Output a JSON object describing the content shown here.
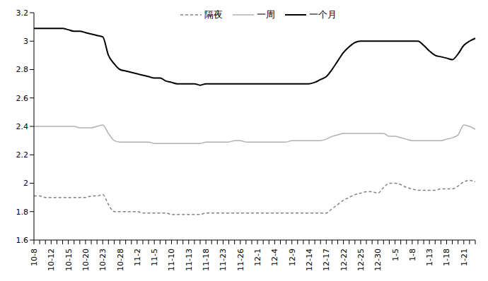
{
  "chart_data": {
    "type": "line",
    "categories": [
      "10-8",
      null,
      null,
      "10-12",
      null,
      null,
      "10-15",
      null,
      null,
      "10-20",
      null,
      null,
      "10-23",
      null,
      null,
      "10-28",
      null,
      null,
      "11-2",
      null,
      null,
      "11-5",
      null,
      null,
      "11-10",
      null,
      null,
      "11-13",
      null,
      null,
      "11-18",
      null,
      null,
      "11-23",
      null,
      null,
      "11-26",
      null,
      null,
      "12-1",
      null,
      null,
      "12-4",
      null,
      null,
      "12-9",
      null,
      null,
      "12-14",
      null,
      null,
      "12-17",
      null,
      null,
      "12-22",
      null,
      null,
      "12-25",
      null,
      null,
      "12-30",
      null,
      null,
      "1-5",
      null,
      null,
      "1-8",
      null,
      null,
      "1-13",
      null,
      null,
      "1-18",
      null,
      null,
      "1-21",
      null,
      null
    ],
    "series": [
      {
        "name": "隔夜",
        "color": "#808080",
        "line_style": "dashed",
        "values": [
          1.91,
          1.91,
          1.9,
          1.9,
          1.9,
          1.9,
          1.9,
          1.9,
          1.9,
          1.9,
          1.91,
          1.91,
          1.92,
          1.85,
          1.8,
          1.8,
          1.8,
          1.8,
          1.8,
          1.79,
          1.79,
          1.79,
          1.79,
          1.79,
          1.78,
          1.78,
          1.78,
          1.78,
          1.78,
          1.78,
          1.79,
          1.79,
          1.79,
          1.79,
          1.79,
          1.79,
          1.79,
          1.79,
          1.79,
          1.79,
          1.79,
          1.79,
          1.79,
          1.79,
          1.79,
          1.79,
          1.79,
          1.79,
          1.79,
          1.79,
          1.79,
          1.79,
          1.82,
          1.85,
          1.88,
          1.9,
          1.92,
          1.93,
          1.94,
          1.94,
          1.93,
          1.97,
          2.0,
          2.0,
          1.99,
          1.97,
          1.96,
          1.95,
          1.95,
          1.95,
          1.95,
          1.96,
          1.96,
          1.96,
          1.98,
          2.01,
          2.02,
          2.01
        ]
      },
      {
        "name": "一周",
        "color": "#b0b0b0",
        "line_style": "solid",
        "values": [
          2.4,
          2.4,
          2.4,
          2.4,
          2.4,
          2.4,
          2.4,
          2.4,
          2.39,
          2.39,
          2.39,
          2.4,
          2.41,
          2.35,
          2.3,
          2.29,
          2.29,
          2.29,
          2.29,
          2.29,
          2.29,
          2.28,
          2.28,
          2.28,
          2.28,
          2.28,
          2.28,
          2.28,
          2.28,
          2.28,
          2.29,
          2.29,
          2.29,
          2.29,
          2.29,
          2.3,
          2.3,
          2.29,
          2.29,
          2.29,
          2.29,
          2.29,
          2.29,
          2.29,
          2.29,
          2.3,
          2.3,
          2.3,
          2.3,
          2.3,
          2.3,
          2.31,
          2.33,
          2.34,
          2.35,
          2.35,
          2.35,
          2.35,
          2.35,
          2.35,
          2.35,
          2.35,
          2.33,
          2.33,
          2.32,
          2.31,
          2.3,
          2.3,
          2.3,
          2.3,
          2.3,
          2.3,
          2.31,
          2.32,
          2.34,
          2.41,
          2.4,
          2.38
        ]
      },
      {
        "name": "一个月",
        "color": "#000000",
        "line_style": "solid",
        "values": [
          3.09,
          3.09,
          3.09,
          3.09,
          3.09,
          3.09,
          3.08,
          3.07,
          3.07,
          3.06,
          3.05,
          3.04,
          3.03,
          2.9,
          2.84,
          2.8,
          2.79,
          2.78,
          2.77,
          2.76,
          2.75,
          2.74,
          2.74,
          2.72,
          2.71,
          2.7,
          2.7,
          2.7,
          2.7,
          2.69,
          2.7,
          2.7,
          2.7,
          2.7,
          2.7,
          2.7,
          2.7,
          2.7,
          2.7,
          2.7,
          2.7,
          2.7,
          2.7,
          2.7,
          2.7,
          2.7,
          2.7,
          2.7,
          2.7,
          2.71,
          2.73,
          2.75,
          2.8,
          2.86,
          2.92,
          2.96,
          2.99,
          3.0,
          3.0,
          3.0,
          3.0,
          3.0,
          3.0,
          3.0,
          3.0,
          3.0,
          3.0,
          3.0,
          2.97,
          2.93,
          2.9,
          2.89,
          2.88,
          2.87,
          2.91,
          2.97,
          3.0,
          3.02
        ]
      }
    ],
    "ylim": [
      1.6,
      3.2
    ],
    "yticks": [
      1.6,
      1.8,
      2,
      2.2,
      2.4,
      2.6,
      2.8,
      3,
      3.2
    ],
    "grid": false,
    "legend": "top"
  }
}
